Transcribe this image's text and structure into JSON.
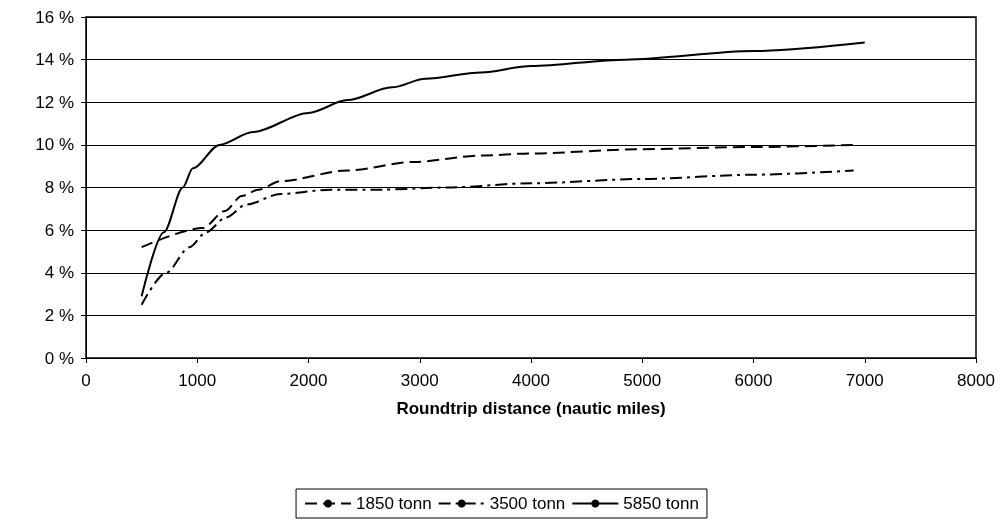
{
  "chart_data": {
    "type": "line",
    "xlabel": "Roundtrip distance (nautic miles)",
    "xlim": [
      0,
      8000
    ],
    "xticks": [
      0,
      1000,
      2000,
      3000,
      4000,
      5000,
      6000,
      7000,
      8000
    ],
    "ylim": [
      0,
      16
    ],
    "yticks": [
      {
        "value": 0,
        "label": "0 %"
      },
      {
        "value": 2,
        "label": "2 %"
      },
      {
        "value": 4,
        "label": "4 %"
      },
      {
        "value": 6,
        "label": "6 %"
      },
      {
        "value": 8,
        "label": "8 %"
      },
      {
        "value": 10,
        "label": "10 %"
      },
      {
        "value": 12,
        "label": "12 %"
      },
      {
        "value": 14,
        "label": "14 %"
      },
      {
        "value": 16,
        "label": "16 %"
      }
    ],
    "grid": "y",
    "legend": "bottom",
    "marker": "none",
    "series": [
      {
        "name": "1850 tonn",
        "color": "#000000",
        "line_style": "dashed",
        "x": [
          500,
          1050,
          1250,
          1400,
          1550,
          1750,
          2350,
          2950,
          3550,
          4000,
          5000,
          6000,
          6900
        ],
        "values": [
          5.2,
          6.1,
          6.9,
          7.6,
          7.9,
          8.3,
          8.8,
          9.2,
          9.5,
          9.6,
          9.8,
          9.9,
          10.0
        ]
      },
      {
        "name": "3500 tonn",
        "color": "#000000",
        "line_style": "dashdot",
        "x": [
          500,
          720,
          930,
          1080,
          1260,
          1440,
          1750,
          2200,
          2650,
          3250,
          4000,
          5000,
          6000,
          6900
        ],
        "values": [
          2.5,
          4.0,
          5.2,
          5.9,
          6.6,
          7.2,
          7.7,
          7.9,
          7.9,
          8.0,
          8.2,
          8.4,
          8.6,
          8.8
        ]
      },
      {
        "name": "5850 tonn",
        "color": "#000000",
        "line_style": "solid",
        "x": [
          500,
          700,
          870,
          960,
          1200,
          1500,
          2000,
          2350,
          2750,
          3050,
          3550,
          4000,
          4850,
          6000,
          7000
        ],
        "values": [
          2.9,
          5.9,
          8.0,
          8.9,
          10.0,
          10.6,
          11.5,
          12.1,
          12.7,
          13.1,
          13.4,
          13.7,
          14.0,
          14.4,
          14.8
        ]
      }
    ]
  }
}
